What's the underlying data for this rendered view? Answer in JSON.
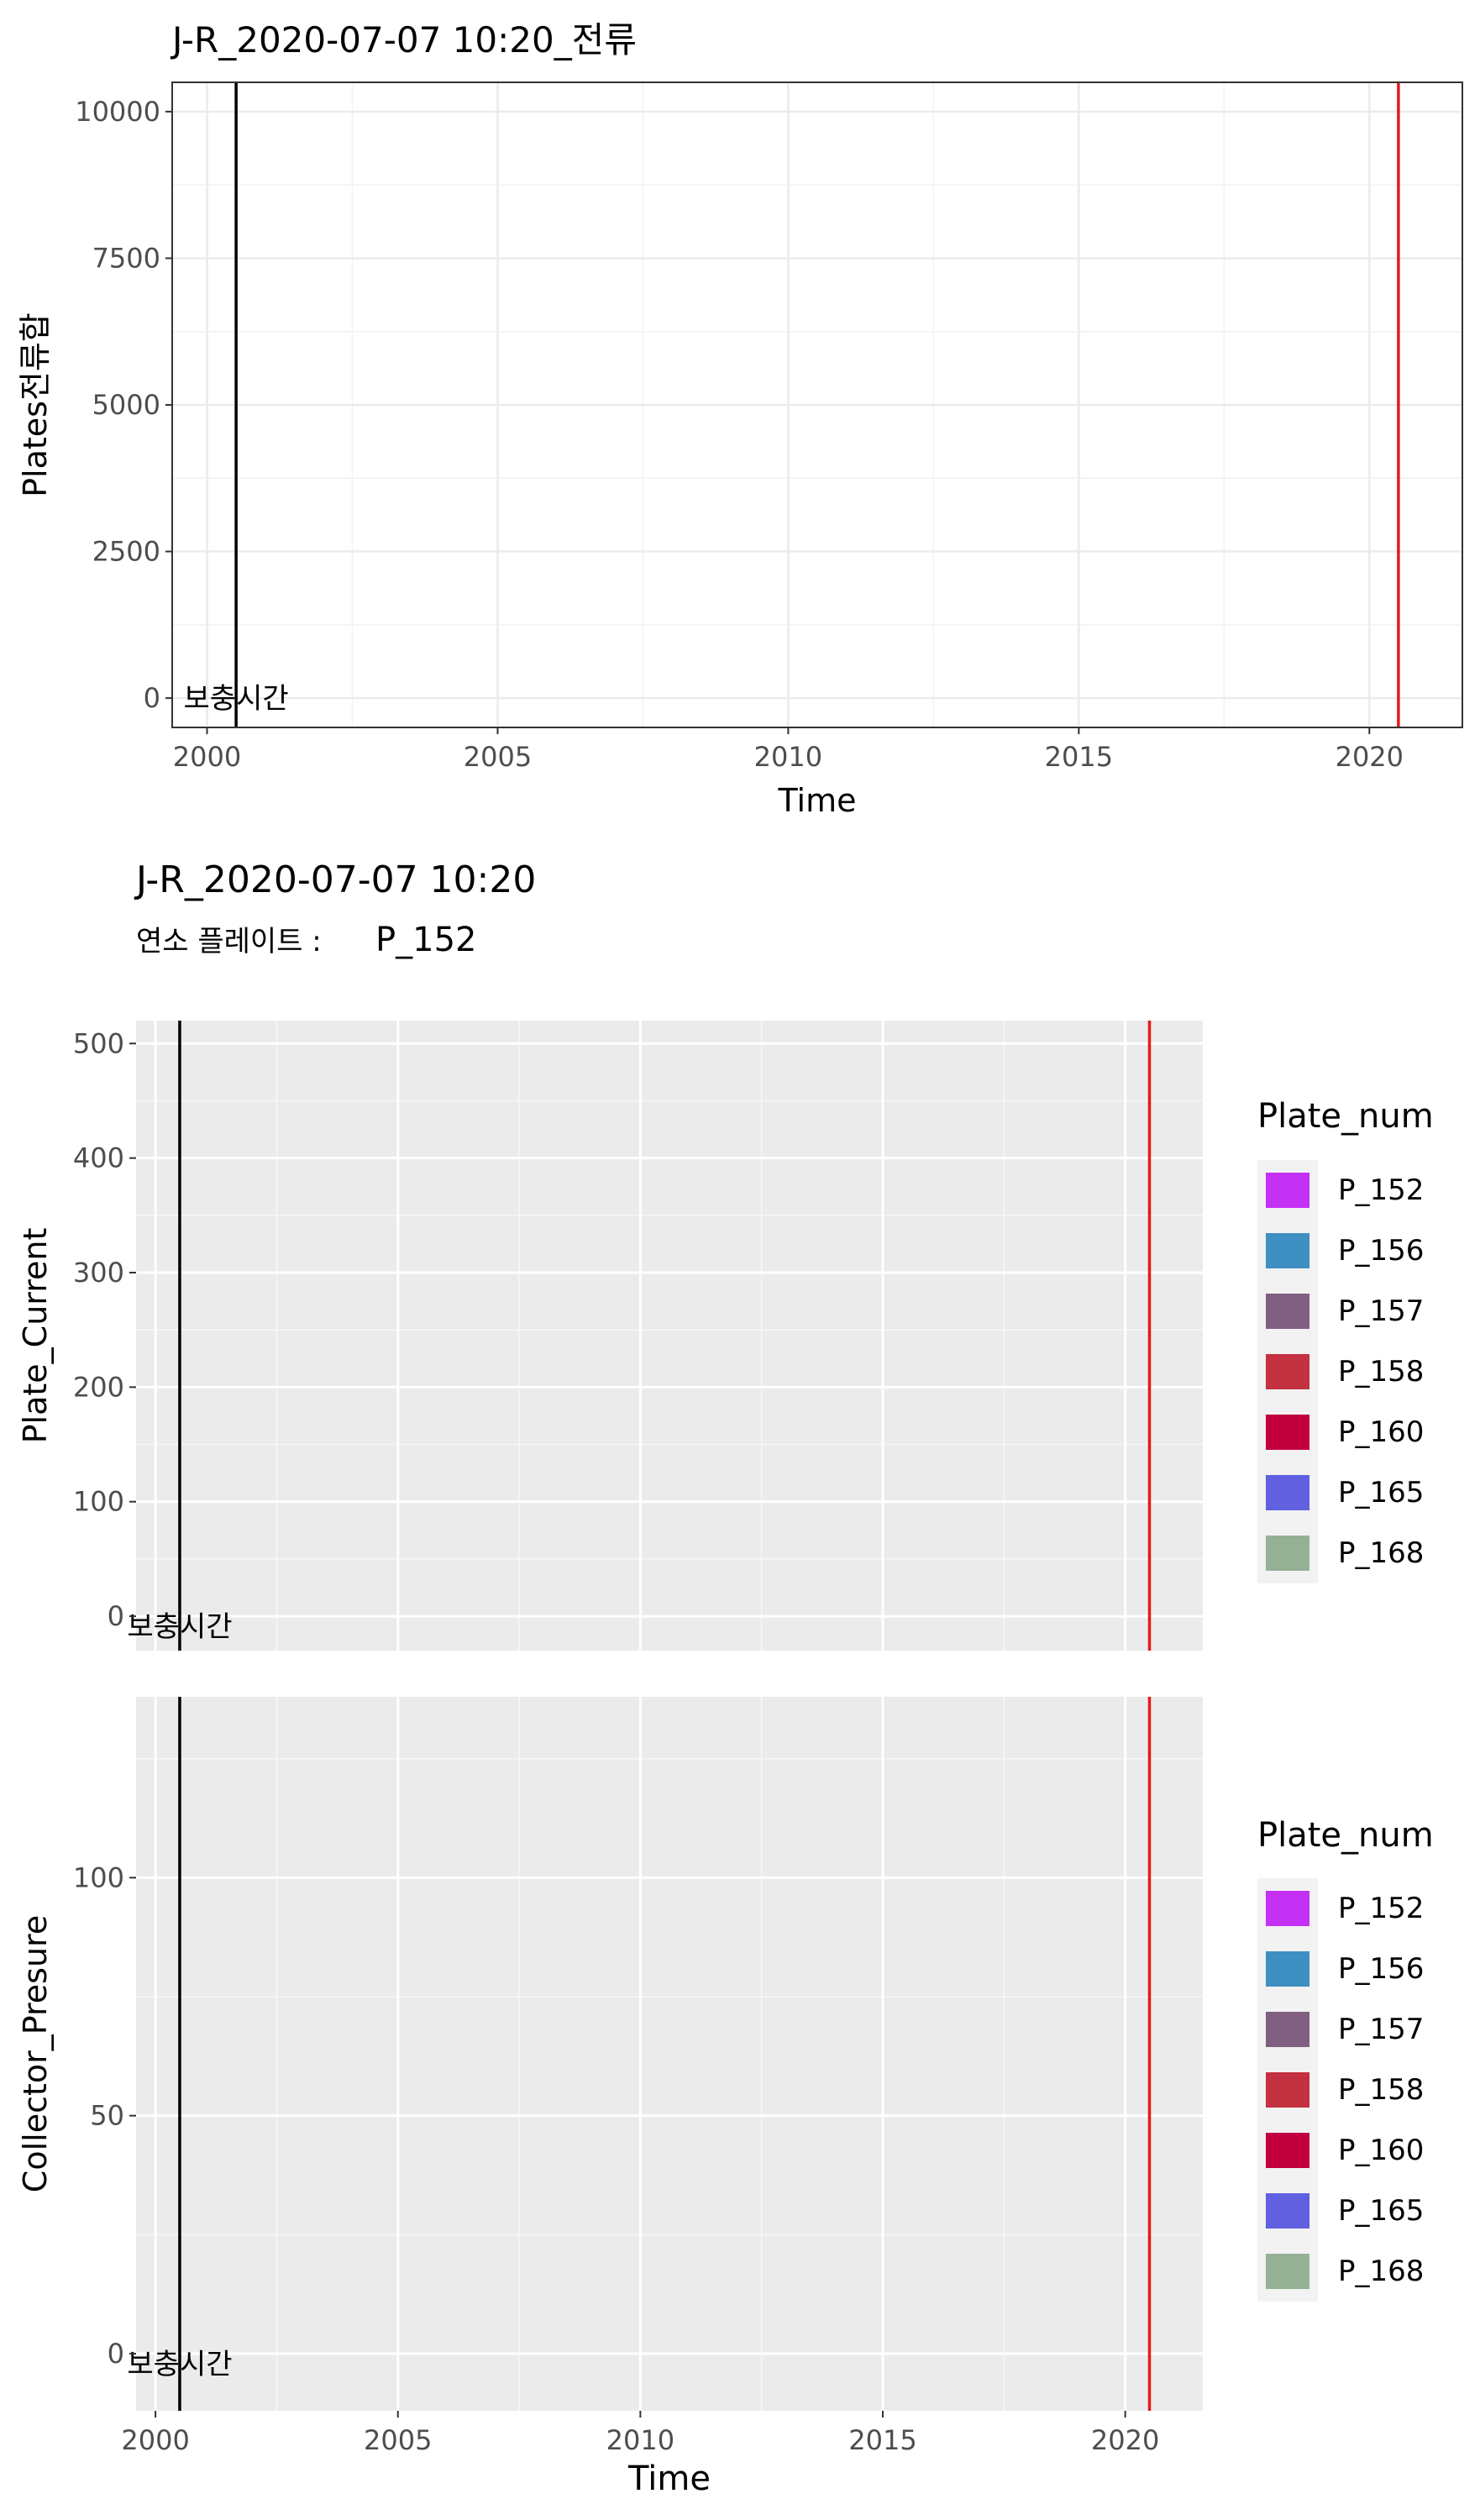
{
  "chart_data": [
    {
      "type": "line",
      "title": "J-R_2020-07-07 10:20_전류",
      "subtitle": "",
      "xlabel": "Time",
      "ylabel": "Plates전류합",
      "xlim": [
        1999.4,
        2021.6
      ],
      "ylim": [
        -500,
        10500
      ],
      "x_ticks": [
        2000,
        2005,
        2010,
        2015,
        2020
      ],
      "y_ticks": [
        0,
        2500,
        5000,
        7500,
        10000
      ],
      "x_tick_labels": [
        "2000",
        "2005",
        "2010",
        "2015",
        "2020"
      ],
      "y_tick_labels": [
        "0",
        "2500",
        "5000",
        "7500",
        "10000"
      ],
      "theme": "bw",
      "grid": true,
      "series": [],
      "vlines": [
        {
          "x": 2000.5,
          "color": "#000000",
          "label": "보충시간"
        },
        {
          "x": 2020.5,
          "color": "#e41a1c",
          "label": ""
        }
      ],
      "annotations": [
        {
          "text": "보충시간",
          "x": 2000.5,
          "y": 0
        }
      ]
    },
    {
      "type": "line",
      "title": "J-R_2020-07-07 10:20",
      "subtitle_prefix": "연소 플레이트 :",
      "subtitle_value": "P_152",
      "theme": "gray",
      "facets": [
        {
          "ylabel": "Plate_Current",
          "xlim": [
            1999.6,
            2021.6
          ],
          "ylim": [
            -30,
            520
          ],
          "y_ticks": [
            0,
            100,
            200,
            300,
            400,
            500
          ],
          "y_tick_labels": [
            "0",
            "100",
            "200",
            "300",
            "400",
            "500"
          ],
          "vlines": [
            {
              "x": 2000.5,
              "color": "#000000"
            },
            {
              "x": 2020.5,
              "color": "#e41a1c"
            }
          ],
          "annotation": "보충시간",
          "legend": {
            "title": "Plate_num",
            "items": [
              {
                "label": "P_152",
                "color": "#c431f5"
              },
              {
                "label": "P_156",
                "color": "#3e8fc2"
              },
              {
                "label": "P_157",
                "color": "#805f80"
              },
              {
                "label": "P_158",
                "color": "#c43140"
              },
              {
                "label": "P_160",
                "color": "#c20040"
              },
              {
                "label": "P_165",
                "color": "#6060e0"
              },
              {
                "label": "P_168",
                "color": "#96b096"
              }
            ]
          }
        },
        {
          "ylabel": "Collector_Presure",
          "xlabel": "Time",
          "xlim": [
            1999.6,
            2021.6
          ],
          "ylim": [
            -12,
            138
          ],
          "y_ticks": [
            0,
            50,
            100
          ],
          "y_tick_labels": [
            "0",
            "50",
            "100"
          ],
          "x_ticks": [
            2000,
            2005,
            2010,
            2015,
            2020
          ],
          "x_tick_labels": [
            "2000",
            "2005",
            "2010",
            "2015",
            "2020"
          ],
          "vlines": [
            {
              "x": 2000.5,
              "color": "#000000"
            },
            {
              "x": 2020.5,
              "color": "#e41a1c"
            }
          ],
          "annotation": "보충시간",
          "legend": {
            "title": "Plate_num",
            "items": [
              {
                "label": "P_152",
                "color": "#c431f5"
              },
              {
                "label": "P_156",
                "color": "#3e8fc2"
              },
              {
                "label": "P_157",
                "color": "#805f80"
              },
              {
                "label": "P_158",
                "color": "#c43140"
              },
              {
                "label": "P_160",
                "color": "#c20040"
              },
              {
                "label": "P_165",
                "color": "#6060e0"
              },
              {
                "label": "P_168",
                "color": "#96b096"
              }
            ]
          }
        }
      ]
    }
  ]
}
